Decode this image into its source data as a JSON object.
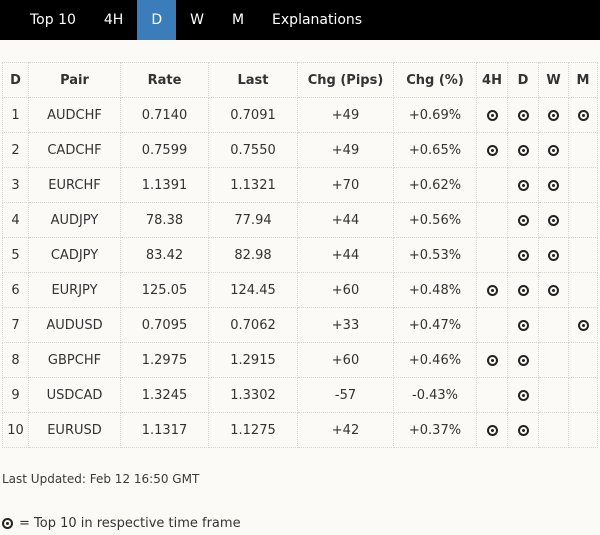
{
  "nav": {
    "tabs": [
      {
        "label": "Top 10",
        "active": false
      },
      {
        "label": "4H",
        "active": false
      },
      {
        "label": "D",
        "active": true
      },
      {
        "label": "W",
        "active": false
      },
      {
        "label": "M",
        "active": false
      },
      {
        "label": "Explanations",
        "active": false
      }
    ]
  },
  "table": {
    "columns": [
      "D",
      "Pair",
      "Rate",
      "Last",
      "Chg (Pips)",
      "Chg (%)",
      "4H",
      "D",
      "W",
      "M"
    ],
    "rows": [
      {
        "rank": "1",
        "pair": "AUDCHF",
        "rate": "0.7140",
        "last": "0.7091",
        "chg_pips": "+49",
        "chg_pct": "+0.69%",
        "timeframes": {
          "h4": true,
          "d": true,
          "w": true,
          "m": true
        }
      },
      {
        "rank": "2",
        "pair": "CADCHF",
        "rate": "0.7599",
        "last": "0.7550",
        "chg_pips": "+49",
        "chg_pct": "+0.65%",
        "timeframes": {
          "h4": true,
          "d": true,
          "w": true,
          "m": false
        }
      },
      {
        "rank": "3",
        "pair": "EURCHF",
        "rate": "1.1391",
        "last": "1.1321",
        "chg_pips": "+70",
        "chg_pct": "+0.62%",
        "timeframes": {
          "h4": false,
          "d": true,
          "w": true,
          "m": false
        }
      },
      {
        "rank": "4",
        "pair": "AUDJPY",
        "rate": "78.38",
        "last": "77.94",
        "chg_pips": "+44",
        "chg_pct": "+0.56%",
        "timeframes": {
          "h4": false,
          "d": true,
          "w": true,
          "m": false
        }
      },
      {
        "rank": "5",
        "pair": "CADJPY",
        "rate": "83.42",
        "last": "82.98",
        "chg_pips": "+44",
        "chg_pct": "+0.53%",
        "timeframes": {
          "h4": false,
          "d": true,
          "w": true,
          "m": false
        }
      },
      {
        "rank": "6",
        "pair": "EURJPY",
        "rate": "125.05",
        "last": "124.45",
        "chg_pips": "+60",
        "chg_pct": "+0.48%",
        "timeframes": {
          "h4": true,
          "d": true,
          "w": true,
          "m": false
        }
      },
      {
        "rank": "7",
        "pair": "AUDUSD",
        "rate": "0.7095",
        "last": "0.7062",
        "chg_pips": "+33",
        "chg_pct": "+0.47%",
        "timeframes": {
          "h4": false,
          "d": true,
          "w": false,
          "m": true
        }
      },
      {
        "rank": "8",
        "pair": "GBPCHF",
        "rate": "1.2975",
        "last": "1.2915",
        "chg_pips": "+60",
        "chg_pct": "+0.46%",
        "timeframes": {
          "h4": true,
          "d": true,
          "w": false,
          "m": false
        }
      },
      {
        "rank": "9",
        "pair": "USDCAD",
        "rate": "1.3245",
        "last": "1.3302",
        "chg_pips": "-57",
        "chg_pct": "-0.43%",
        "timeframes": {
          "h4": false,
          "d": true,
          "w": false,
          "m": false
        }
      },
      {
        "rank": "10",
        "pair": "EURUSD",
        "rate": "1.1317",
        "last": "1.1275",
        "chg_pips": "+42",
        "chg_pct": "+0.37%",
        "timeframes": {
          "h4": true,
          "d": true,
          "w": false,
          "m": false
        }
      }
    ]
  },
  "footer": {
    "last_updated": "Last Updated: Feb 12 16:50 GMT",
    "legend_text": "= Top 10 in respective time frame",
    "legend_icon": "top10-marker-icon"
  },
  "colors": {
    "accent": "#3b7dbb",
    "nav_bg": "#000000",
    "page_bg": "#fbfaf6",
    "marker": "#222222"
  }
}
